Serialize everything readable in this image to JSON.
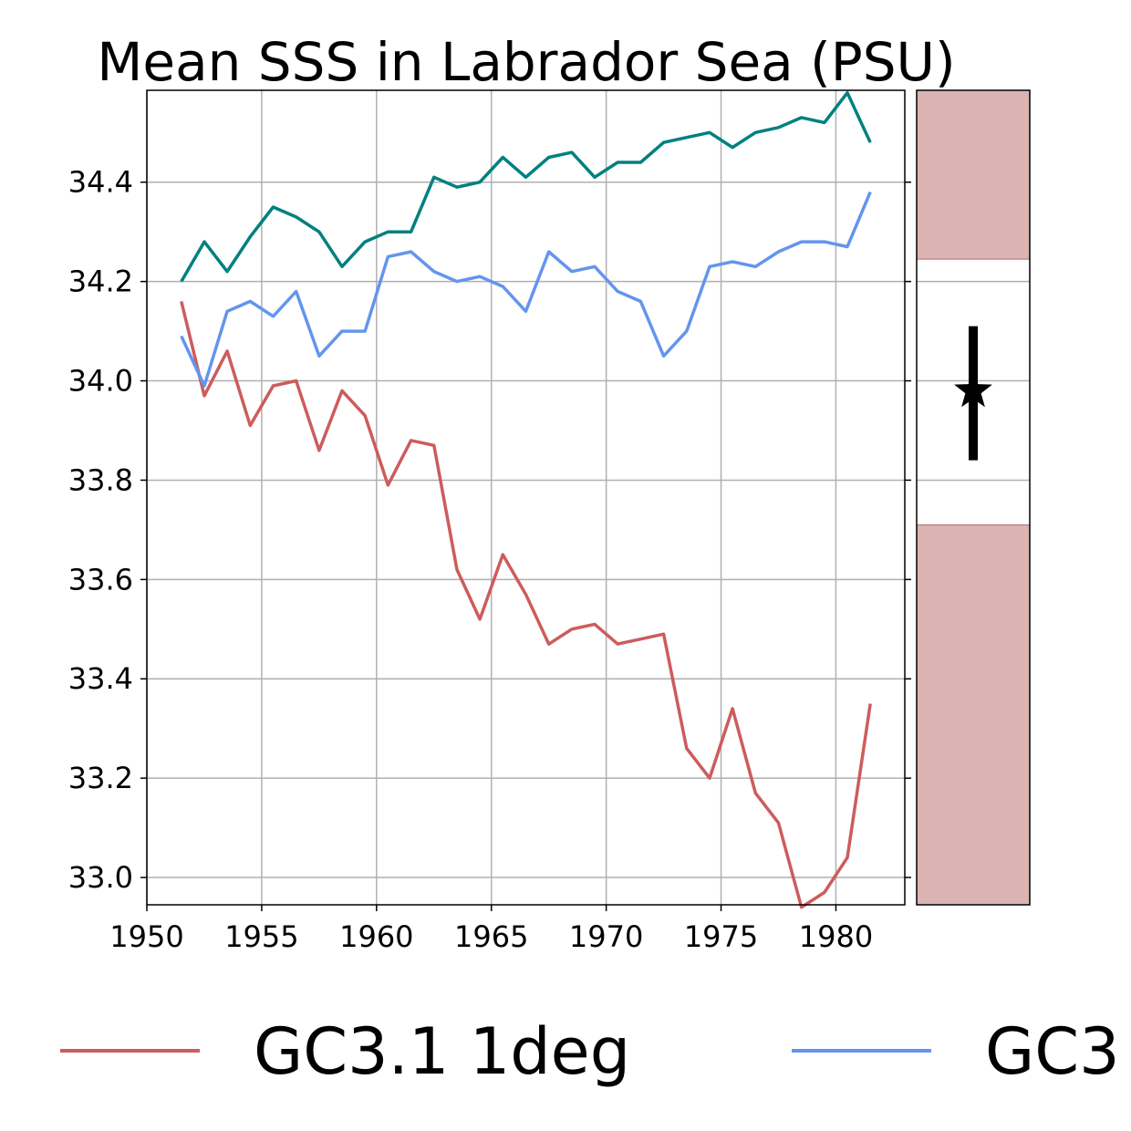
{
  "chart_data": {
    "type": "line",
    "title": "Mean SSS in Labrador Sea (PSU)",
    "xlabel": "",
    "ylabel": "",
    "xlim": [
      1950,
      1983
    ],
    "ylim": [
      32.945,
      34.585
    ],
    "grid": true,
    "x_ticks": [
      "1950",
      "1955",
      "1960",
      "1965",
      "1970",
      "1975",
      "1980"
    ],
    "y_ticks": [
      "33.0",
      "33.2",
      "33.4",
      "33.6",
      "33.8",
      "34.0",
      "34.2",
      "34.4"
    ],
    "x": [
      1951.5,
      1952.5,
      1953.5,
      1954.5,
      1955.5,
      1956.5,
      1957.5,
      1958.5,
      1959.5,
      1960.5,
      1961.5,
      1962.5,
      1963.5,
      1964.5,
      1965.5,
      1966.5,
      1967.5,
      1968.5,
      1969.5,
      1970.5,
      1971.5,
      1972.5,
      1973.5,
      1974.5,
      1975.5,
      1976.5,
      1977.5,
      1978.5,
      1979.5,
      1980.5,
      1981.5
    ],
    "series": [
      {
        "name": "GC3.1 1deg",
        "color": "#cd5c5c",
        "values": [
          34.16,
          33.97,
          34.06,
          33.91,
          33.99,
          34.0,
          33.86,
          33.98,
          33.93,
          33.79,
          33.88,
          33.87,
          33.62,
          33.52,
          33.65,
          33.57,
          33.47,
          33.5,
          33.51,
          33.47,
          33.48,
          33.49,
          33.26,
          33.2,
          33.34,
          33.17,
          33.11,
          32.94,
          32.97,
          33.04,
          33.35
        ]
      },
      {
        "name": "GC3",
        "color": "#6495ed",
        "values": [
          34.09,
          33.99,
          34.14,
          34.16,
          34.13,
          34.18,
          34.05,
          34.1,
          34.1,
          34.25,
          34.26,
          34.22,
          34.2,
          34.21,
          34.19,
          34.14,
          34.26,
          34.22,
          34.23,
          34.18,
          34.16,
          34.05,
          34.1,
          34.23,
          34.24,
          34.23,
          34.26,
          34.28,
          34.28,
          34.27,
          34.38
        ]
      },
      {
        "name": "",
        "color": "#008080",
        "values": [
          34.2,
          34.28,
          34.22,
          34.29,
          34.35,
          34.33,
          34.3,
          34.23,
          34.28,
          34.3,
          34.3,
          34.41,
          34.39,
          34.4,
          34.45,
          34.41,
          34.45,
          34.46,
          34.41,
          34.44,
          34.44,
          34.48,
          34.49,
          34.5,
          34.47,
          34.5,
          34.51,
          34.53,
          34.52,
          34.58,
          34.48
        ]
      }
    ],
    "side_panel": {
      "shaded_color": "#dbb3b3",
      "shaded_above": 34.245,
      "shaded_below": 33.71,
      "marker_value": 33.98,
      "errorbar_low": 33.84,
      "errorbar_high": 34.11
    },
    "legend": {
      "placement": "bottom",
      "entries": [
        "GC3.1 1deg",
        "GC3"
      ]
    }
  }
}
